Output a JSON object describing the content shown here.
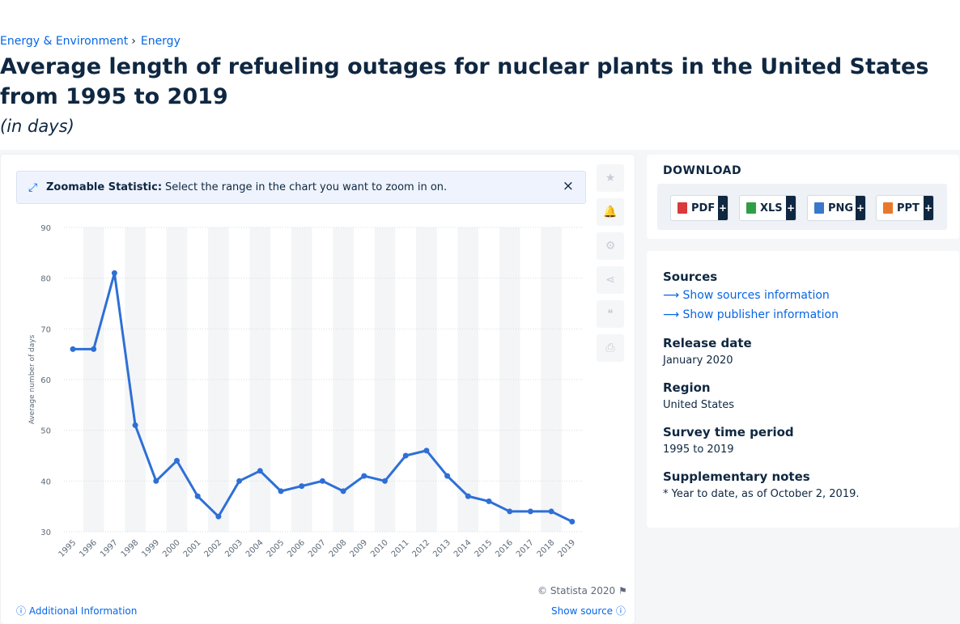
{
  "breadcrumb": {
    "item1": "Energy & Environment",
    "separator": "›",
    "item2": "Energy"
  },
  "title": "Average length of refueling outages for nuclear plants in the United States from 1995 to 2019",
  "subtitle": "(in days)",
  "zoom_banner": {
    "icon": "expand-icon",
    "label": "Zoomable Statistic:",
    "text": "Select the range in the chart you want to zoom in on.",
    "close": "×"
  },
  "side_tools": [
    "star-icon",
    "bell-icon",
    "gear-icon",
    "share-icon",
    "quote-icon",
    "print-icon"
  ],
  "chart_data": {
    "type": "line",
    "title": "",
    "xlabel": "",
    "ylabel": "Average number of days",
    "categories": [
      "1995",
      "1996",
      "1997",
      "1998",
      "1999",
      "2000",
      "2001",
      "2002",
      "2003",
      "2004",
      "2005",
      "2006",
      "2007",
      "2008",
      "2009",
      "2010",
      "2011",
      "2012",
      "2013",
      "2014",
      "2015",
      "2016",
      "2017",
      "2018",
      "2019"
    ],
    "series": [
      {
        "values": [
          66,
          66,
          81,
          51,
          40,
          44,
          37,
          33,
          40,
          42,
          38,
          39,
          40,
          38,
          41,
          40,
          45,
          46,
          41,
          37,
          36,
          34,
          34,
          34,
          32
        ]
      }
    ],
    "ylim": [
      30,
      90
    ],
    "yticks": [
      30,
      40,
      50,
      60,
      70,
      80,
      90
    ],
    "grid": true,
    "color": "#2e6fd6"
  },
  "copyright": "© Statista 2020",
  "additional_info": "Additional Information",
  "show_source": "Show source",
  "download": {
    "title": "DOWNLOAD",
    "buttons": [
      {
        "label": "PDF",
        "plus": "+",
        "color": "#d93a3a"
      },
      {
        "label": "XLS",
        "plus": "+",
        "color": "#2f9e44"
      },
      {
        "label": "PNG",
        "plus": "+",
        "color": "#3a78c9"
      },
      {
        "label": "PPT",
        "plus": "+",
        "color": "#e8792b"
      }
    ]
  },
  "info": {
    "sources_heading": "Sources",
    "show_sources": "Show sources information",
    "show_publisher": "Show publisher information",
    "release_heading": "Release date",
    "release_value": "January 2020",
    "region_heading": "Region",
    "region_value": "United States",
    "survey_heading": "Survey time period",
    "survey_value": "1995 to 2019",
    "notes_heading": "Supplementary notes",
    "notes_value": "* Year to date, as of October 2, 2019."
  }
}
